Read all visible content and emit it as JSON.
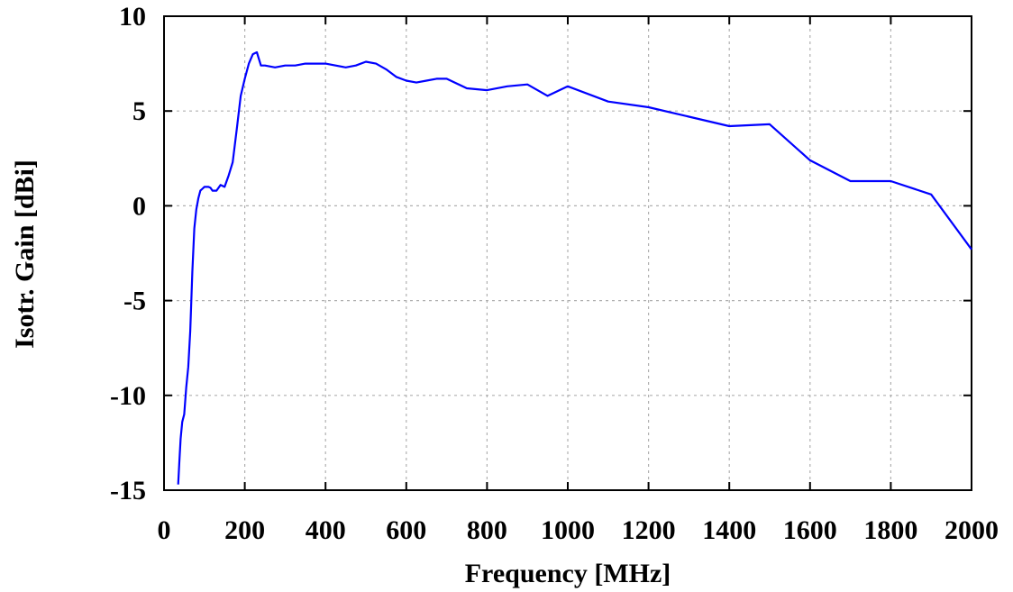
{
  "chart_data": {
    "type": "line",
    "xlabel": "Frequency [MHz]",
    "ylabel": "Isotr. Gain [dBi]",
    "xlim": [
      0,
      2000
    ],
    "ylim": [
      -15,
      10
    ],
    "xticks": [
      0,
      200,
      400,
      600,
      800,
      1000,
      1200,
      1400,
      1600,
      1800,
      2000
    ],
    "yticks": [
      -15,
      -10,
      -5,
      0,
      5,
      10
    ],
    "xtick_labels": [
      "0",
      "200",
      "400",
      "600",
      "800",
      "1000",
      "1200",
      "1400",
      "1600",
      "1800",
      "2000"
    ],
    "ytick_labels": [
      "-15",
      "-10",
      "-5",
      "0",
      "5",
      "10"
    ],
    "grid": true,
    "series_color": "#0000ff",
    "series": [
      {
        "x": [
          35,
          38,
          41,
          45,
          50,
          55,
          60,
          65,
          70,
          75,
          80,
          85,
          90,
          95,
          100,
          105,
          110,
          115,
          120,
          130,
          140,
          150,
          160,
          170,
          180,
          190,
          200,
          210,
          220,
          230,
          240,
          250,
          275,
          300,
          325,
          350,
          375,
          400,
          450,
          475,
          500,
          525,
          550,
          575,
          600,
          625,
          650,
          675,
          700,
          750,
          800,
          850,
          900,
          950,
          1000,
          1100,
          1200,
          1300,
          1400,
          1500,
          1600,
          1700,
          1800,
          1900,
          2000
        ],
        "y": [
          -14.7,
          -13.5,
          -12.3,
          -11.4,
          -11.0,
          -9.6,
          -8.5,
          -6.6,
          -3.5,
          -1.2,
          -0.2,
          0.4,
          0.8,
          0.9,
          1.0,
          1.0,
          1.0,
          0.95,
          0.8,
          0.8,
          1.1,
          1.0,
          1.6,
          2.3,
          4.0,
          5.8,
          6.7,
          7.5,
          8.0,
          8.1,
          7.4,
          7.4,
          7.3,
          7.4,
          7.4,
          7.5,
          7.5,
          7.5,
          7.3,
          7.4,
          7.6,
          7.5,
          7.2,
          6.8,
          6.6,
          6.5,
          6.6,
          6.7,
          6.7,
          6.2,
          6.1,
          6.3,
          6.4,
          5.8,
          6.3,
          5.5,
          5.2,
          4.7,
          4.2,
          4.3,
          2.4,
          1.3,
          1.3,
          0.6,
          -2.3
        ]
      }
    ]
  }
}
